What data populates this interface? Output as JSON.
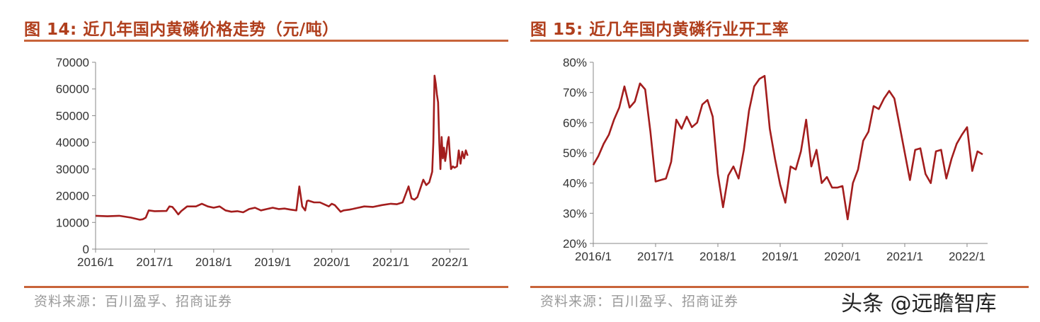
{
  "panels": [
    {
      "title": "图 14:  近几年国内黄磷价格走势（元/吨）",
      "source": "资料来源：百川盈孚、招商证券"
    },
    {
      "title": "图 15:  近几年国内黄磷行业开工率",
      "source": "资料来源：百川盈孚、招商证券"
    }
  ],
  "watermark": "头条 @远瞻智库",
  "chart_data": [
    {
      "type": "line",
      "color": "#a31d1d",
      "x_ticks": [
        "2016/1",
        "2017/1",
        "2018/1",
        "2019/1",
        "2020/1",
        "2021/1",
        "2022/1"
      ],
      "y_ticks": [
        "0",
        "10000",
        "20000",
        "30000",
        "40000",
        "50000",
        "60000",
        "70000"
      ],
      "ylim": [
        0,
        70000
      ],
      "xlim": [
        2016.0,
        2022.33
      ],
      "series": [
        {
          "x": [
            2016.0,
            2016.2,
            2016.4,
            2016.6,
            2016.75,
            2016.8,
            2016.85,
            2016.9,
            2017.0,
            2017.2,
            2017.25,
            2017.3,
            2017.35,
            2017.4,
            2017.45,
            2017.55,
            2017.7,
            2017.8,
            2017.9,
            2018.0,
            2018.1,
            2018.2,
            2018.3,
            2018.4,
            2018.5,
            2018.6,
            2018.7,
            2018.8,
            2018.9,
            2019.0,
            2019.1,
            2019.2,
            2019.3,
            2019.4,
            2019.45,
            2019.5,
            2019.55,
            2019.58,
            2019.6,
            2019.7,
            2019.8,
            2019.95,
            2020.0,
            2020.05,
            2020.15,
            2020.2,
            2020.3,
            2020.35,
            2020.45,
            2020.55,
            2020.7,
            2020.85,
            2021.0,
            2021.1,
            2021.2,
            2021.3,
            2021.35,
            2021.4,
            2021.45,
            2021.55,
            2021.6,
            2021.65,
            2021.7,
            2021.72,
            2021.74,
            2021.76,
            2021.78,
            2021.8,
            2021.82,
            2021.84,
            2021.86,
            2021.88,
            2021.9,
            2021.92,
            2021.94,
            2021.96,
            2021.98,
            2022.0,
            2022.02,
            2022.05,
            2022.08,
            2022.12,
            2022.15,
            2022.18,
            2022.21,
            2022.24,
            2022.27,
            2022.3
          ],
          "y": [
            12500,
            12300,
            12500,
            11800,
            11000,
            11200,
            11800,
            14500,
            14200,
            14300,
            16000,
            15800,
            14500,
            13000,
            14200,
            16000,
            16000,
            17000,
            16000,
            15500,
            16000,
            14500,
            14000,
            14200,
            13800,
            15000,
            15500,
            14500,
            15000,
            15500,
            15000,
            15200,
            14800,
            14500,
            23500,
            16000,
            14500,
            18000,
            18200,
            17500,
            17500,
            16000,
            17000,
            16500,
            14000,
            14500,
            14800,
            15000,
            15500,
            16000,
            15800,
            16500,
            17000,
            16800,
            17500,
            23500,
            19000,
            18500,
            19500,
            26000,
            24000,
            25000,
            29000,
            40000,
            65000,
            62000,
            58000,
            55000,
            40000,
            30000,
            42000,
            34000,
            38000,
            33000,
            36000,
            40000,
            42000,
            35000,
            30000,
            31000,
            30500,
            31000,
            37000,
            32000,
            36500,
            34000,
            37000,
            35000
          ]
        }
      ]
    },
    {
      "type": "line",
      "color": "#a31d1d",
      "x_ticks": [
        "2016/1",
        "2017/1",
        "2018/1",
        "2019/1",
        "2020/1",
        "2021/1",
        "2022/1"
      ],
      "y_ticks": [
        "20%",
        "30%",
        "40%",
        "50%",
        "60%",
        "70%",
        "80%"
      ],
      "ylim": [
        20,
        80
      ],
      "xlim": [
        2016.0,
        2022.33
      ],
      "series": [
        {
          "x": [
            2016.0,
            2016.083,
            2016.167,
            2016.25,
            2016.333,
            2016.417,
            2016.5,
            2016.583,
            2016.667,
            2016.75,
            2016.833,
            2016.917,
            2017.0,
            2017.083,
            2017.167,
            2017.25,
            2017.333,
            2017.417,
            2017.5,
            2017.583,
            2017.667,
            2017.75,
            2017.833,
            2017.917,
            2018.0,
            2018.083,
            2018.167,
            2018.25,
            2018.333,
            2018.417,
            2018.5,
            2018.583,
            2018.667,
            2018.75,
            2018.833,
            2018.917,
            2019.0,
            2019.083,
            2019.167,
            2019.25,
            2019.333,
            2019.417,
            2019.5,
            2019.583,
            2019.667,
            2019.75,
            2019.833,
            2019.917,
            2020.0,
            2020.083,
            2020.167,
            2020.25,
            2020.333,
            2020.417,
            2020.5,
            2020.583,
            2020.667,
            2020.75,
            2020.833,
            2020.917,
            2021.0,
            2021.083,
            2021.167,
            2021.25,
            2021.333,
            2021.417,
            2021.5,
            2021.583,
            2021.667,
            2021.75,
            2021.833,
            2021.917,
            2022.0,
            2022.083,
            2022.167,
            2022.25
          ],
          "y": [
            46,
            49,
            53,
            56,
            61,
            65,
            72,
            65,
            67,
            73,
            71,
            57,
            40.5,
            41,
            41.5,
            47,
            61,
            58,
            62,
            58.5,
            60,
            66,
            67.5,
            62,
            43,
            32,
            42.5,
            45.5,
            41.5,
            51,
            64,
            72,
            74.5,
            75.5,
            58,
            48,
            39.5,
            33.5,
            45.5,
            44.5,
            50.5,
            61,
            45.5,
            51,
            40,
            42,
            38.5,
            38.5,
            39,
            28,
            40,
            44.5,
            54,
            57,
            65.5,
            64.5,
            68,
            70.5,
            68,
            59,
            50,
            41,
            51,
            51.5,
            43,
            40,
            50.5,
            51,
            41.5,
            48,
            53,
            56,
            58.5,
            44,
            50.5,
            49.5
          ]
        }
      ]
    }
  ]
}
